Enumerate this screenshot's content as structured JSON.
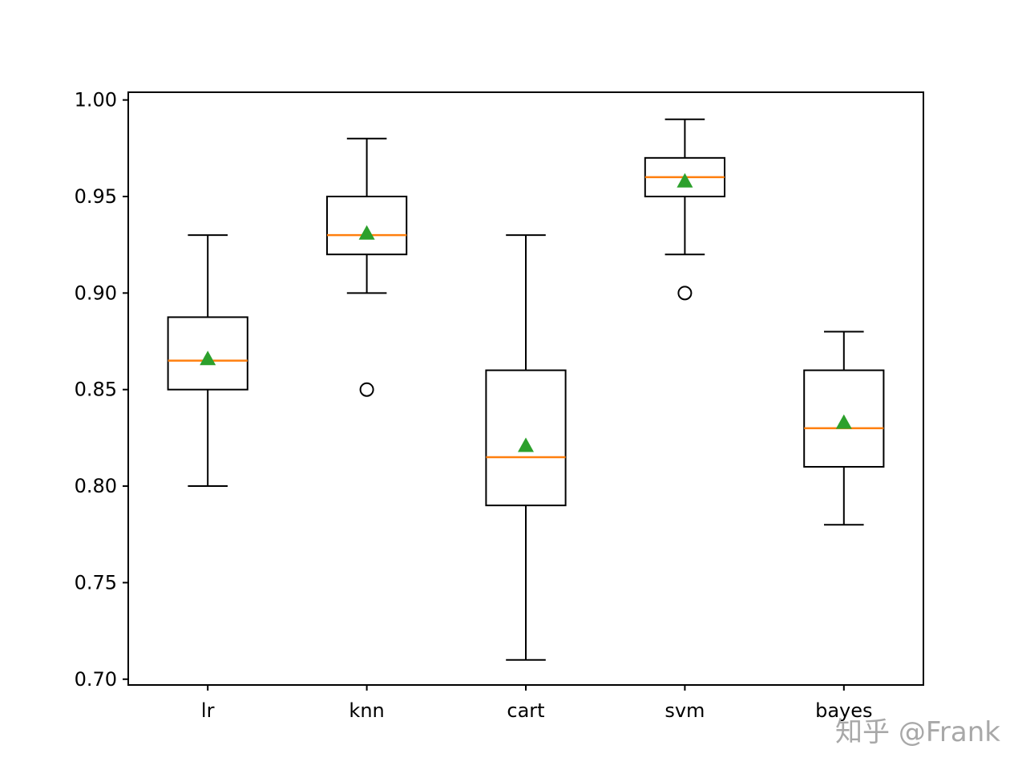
{
  "chart_data": {
    "type": "box",
    "title": "",
    "xlabel": "",
    "ylabel": "",
    "categories": [
      "lr",
      "knn",
      "cart",
      "svm",
      "bayes"
    ],
    "ylim": [
      0.697,
      1.004
    ],
    "yticks": [
      0.7,
      0.75,
      0.8,
      0.85,
      0.9,
      0.95,
      1.0
    ],
    "ytick_labels": [
      "0.70",
      "0.75",
      "0.80",
      "0.85",
      "0.90",
      "0.95",
      "1.00"
    ],
    "show_means": true,
    "grid": false,
    "boxes": [
      {
        "label": "lr",
        "whisker_low": 0.8,
        "q1": 0.85,
        "median": 0.865,
        "q3": 0.8875,
        "whisker_high": 0.93,
        "mean": 0.866,
        "outliers": []
      },
      {
        "label": "knn",
        "whisker_low": 0.9,
        "q1": 0.92,
        "median": 0.93,
        "q3": 0.95,
        "whisker_high": 0.98,
        "mean": 0.931,
        "outliers": [
          0.85
        ]
      },
      {
        "label": "cart",
        "whisker_low": 0.71,
        "q1": 0.79,
        "median": 0.815,
        "q3": 0.86,
        "whisker_high": 0.93,
        "mean": 0.821,
        "outliers": []
      },
      {
        "label": "svm",
        "whisker_low": 0.92,
        "q1": 0.95,
        "median": 0.96,
        "q3": 0.97,
        "whisker_high": 0.99,
        "mean": 0.958,
        "outliers": [
          0.9
        ]
      },
      {
        "label": "bayes",
        "whisker_low": 0.78,
        "q1": 0.81,
        "median": 0.83,
        "q3": 0.86,
        "whisker_high": 0.88,
        "mean": 0.833,
        "outliers": []
      }
    ],
    "colors": {
      "box": "#000000",
      "median": "#ff7f0e",
      "mean_marker": "#2ca02c",
      "outlier": "#000000"
    }
  },
  "watermark": "知乎 @Frank"
}
